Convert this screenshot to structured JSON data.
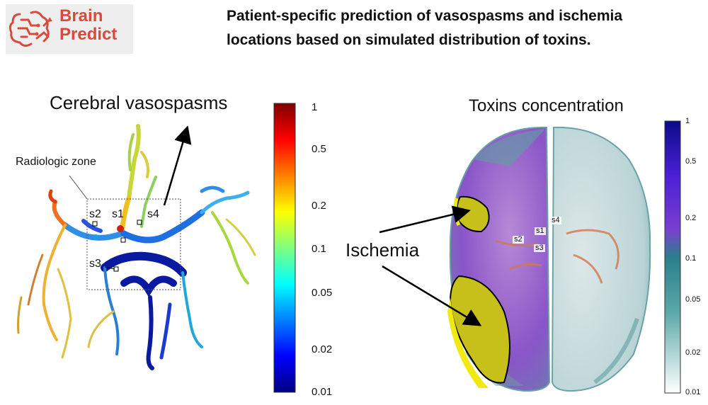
{
  "logo": {
    "line1": "Brain",
    "line2": "Predict",
    "brand_color": "#d94a3c",
    "icon": "brain-circuit-icon"
  },
  "headline": {
    "line1": "Patient-specific prediction of vasospasms and ischemia",
    "line2": "locations based on simulated distribution of toxins."
  },
  "left_panel": {
    "title": "Cerebral vasospasms",
    "zone_label": "Radiologic zone",
    "site_labels": {
      "s1": "s1",
      "s2": "s2",
      "s3": "s3",
      "s4": "s4"
    },
    "colorbar": {
      "colormap": "jet",
      "ticks": [
        "1",
        "0.5",
        "0.2",
        "0.1",
        "0.05",
        "0.02",
        "0.01"
      ]
    }
  },
  "right_panel": {
    "title": "Toxins concentration",
    "ischemia_label": "Ischemia",
    "site_labels": {
      "s1": "s1",
      "s2": "s2",
      "s3": "s3",
      "s4": "s4"
    },
    "colorbar": {
      "colormap": "white-teal-purple-blue",
      "ticks": [
        "1",
        "0.5",
        "0.2",
        "0.1",
        "0.05",
        "0.02",
        "0.01"
      ]
    }
  }
}
